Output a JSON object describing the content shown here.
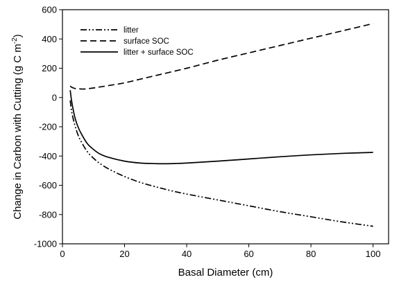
{
  "chart_data": {
    "type": "line",
    "title": "",
    "xlabel": "Basal Diameter (cm)",
    "ylabel": {
      "prefix": "Change in Carbon with Cutting (g C m",
      "superscript": "-2",
      "suffix": ")"
    },
    "xlim": [
      0,
      105
    ],
    "ylim": [
      -1000,
      600
    ],
    "xticks": [
      0,
      20,
      40,
      60,
      80,
      100
    ],
    "yticks": [
      -1000,
      -800,
      -600,
      -400,
      -200,
      0,
      200,
      400,
      600
    ],
    "grid": false,
    "legend_position": "top-left",
    "series": [
      {
        "name": "litter",
        "line_style": "dash-dot-dot",
        "color": "#000000",
        "x": [
          2.5,
          3,
          4,
          5,
          6,
          8,
          10,
          12,
          15,
          20,
          25,
          30,
          35,
          40,
          50,
          60,
          70,
          80,
          90,
          100
        ],
        "y": [
          -20,
          -100,
          -190,
          -255,
          -300,
          -370,
          -415,
          -450,
          -490,
          -540,
          -580,
          -610,
          -637,
          -660,
          -700,
          -740,
          -780,
          -815,
          -850,
          -880
        ]
      },
      {
        "name": "surface SOC",
        "line_style": "dashed",
        "color": "#000000",
        "x": [
          2.5,
          3,
          4,
          5,
          6,
          7,
          8,
          10,
          12,
          15,
          20,
          25,
          30,
          40,
          50,
          60,
          70,
          80,
          90,
          100
        ],
        "y": [
          78,
          70,
          62,
          60,
          58,
          58,
          60,
          65,
          72,
          82,
          100,
          125,
          150,
          200,
          255,
          305,
          355,
          405,
          455,
          505
        ]
      },
      {
        "name": "litter + surface SOC",
        "line_style": "solid",
        "color": "#000000",
        "x": [
          2.5,
          3,
          4,
          5,
          6,
          8,
          10,
          12,
          15,
          20,
          25,
          30,
          35,
          40,
          50,
          60,
          70,
          80,
          90,
          100
        ],
        "y": [
          50,
          -30,
          -135,
          -200,
          -245,
          -315,
          -355,
          -385,
          -410,
          -435,
          -448,
          -452,
          -452,
          -448,
          -435,
          -420,
          -405,
          -392,
          -382,
          -375
        ]
      }
    ]
  }
}
